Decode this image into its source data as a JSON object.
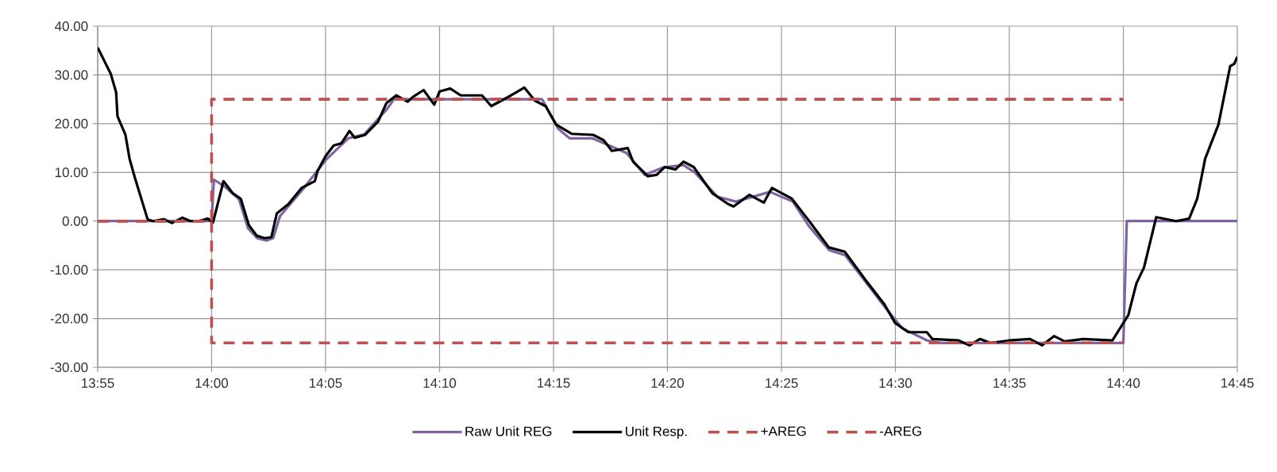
{
  "chart_data": {
    "type": "line",
    "xlim": [
      13.9167,
      14.75
    ],
    "xticks": [
      {
        "value": 13.9167,
        "label": "13:55"
      },
      {
        "value": 14.0,
        "label": "14:00"
      },
      {
        "value": 14.0833,
        "label": "14:05"
      },
      {
        "value": 14.1667,
        "label": "14:10"
      },
      {
        "value": 14.25,
        "label": "14:15"
      },
      {
        "value": 14.3333,
        "label": "14:20"
      },
      {
        "value": 14.4167,
        "label": "14:25"
      },
      {
        "value": 14.5,
        "label": "14:30"
      },
      {
        "value": 14.5833,
        "label": "14:35"
      },
      {
        "value": 14.6667,
        "label": "14:40"
      },
      {
        "value": 14.75,
        "label": "14:45"
      }
    ],
    "ylim": [
      -30,
      40
    ],
    "yticks": [
      {
        "value": -30,
        "label": "-30.00"
      },
      {
        "value": -20,
        "label": "-20.00"
      },
      {
        "value": -10,
        "label": "-10.00"
      },
      {
        "value": 0,
        "label": "0.00"
      },
      {
        "value": 10,
        "label": "10.00"
      },
      {
        "value": 20,
        "label": "20.00"
      },
      {
        "value": 30,
        "label": "30.00"
      },
      {
        "value": 40,
        "label": "40.00"
      }
    ],
    "grid": true,
    "legend": "bottom",
    "marker": "none",
    "series": [
      {
        "name": "Raw Unit REG",
        "color": "#8064a2",
        "line_style": "solid",
        "x": [
          13.9167,
          14.0,
          14.0017,
          14.01,
          14.02,
          14.0267,
          14.0333,
          14.04,
          14.045,
          14.05,
          14.0667,
          14.0833,
          14.1,
          14.1117,
          14.1283,
          14.1333,
          14.2417,
          14.2533,
          14.2617,
          14.2783,
          14.3033,
          14.3167,
          14.33,
          14.345,
          14.3533,
          14.37,
          14.3833,
          14.4083,
          14.425,
          14.4367,
          14.4517,
          14.4633,
          14.4933,
          14.505,
          14.5233,
          14.5333,
          14.6667,
          14.6692,
          14.75
        ],
        "values": [
          0,
          0,
          8.5,
          7.0,
          4.5,
          -1.5,
          -3.5,
          -4.0,
          -3.5,
          1.0,
          6.5,
          12.5,
          17.0,
          17.8,
          23.0,
          25.0,
          25.0,
          19.0,
          17.0,
          17.0,
          14.0,
          9.5,
          11.0,
          11.5,
          10.0,
          5.0,
          4.0,
          6.0,
          4.0,
          -1.0,
          -6.0,
          -7.0,
          -18.0,
          -22.0,
          -24.5,
          -25.0,
          -25.0,
          0,
          0
        ]
      },
      {
        "name": "Unit Resp.",
        "color": "#000000",
        "line_style": "solid",
        "x": [
          13.9167,
          13.9263,
          13.9302,
          13.9312,
          13.937,
          13.94,
          13.9438,
          13.9533,
          13.9573,
          13.965,
          13.971,
          13.9787,
          13.9845,
          13.9903,
          13.9972,
          14.001,
          14.0087,
          14.0155,
          14.0213,
          14.0272,
          14.033,
          14.0388,
          14.0437,
          14.0477,
          14.0562,
          14.0658,
          14.0755,
          14.0775,
          14.0833,
          14.0892,
          14.095,
          14.1008,
          14.1047,
          14.1123,
          14.1217,
          14.1278,
          14.135,
          14.1433,
          14.1473,
          14.155,
          14.1628,
          14.1667,
          14.1745,
          14.1822,
          14.1977,
          14.2045,
          14.219,
          14.2287,
          14.2365,
          14.2442,
          14.252,
          14.2635,
          14.279,
          14.2867,
          14.2927,
          14.3043,
          14.3082,
          14.3158,
          14.3188,
          14.3255,
          14.3313,
          14.3392,
          14.345,
          14.3525,
          14.3662,
          14.3777,
          14.3817,
          14.3933,
          14.4038,
          14.4097,
          14.4243,
          14.4378,
          14.4513,
          14.463,
          14.4785,
          14.492,
          14.4998,
          14.5095,
          14.523,
          14.527,
          14.5463,
          14.5542,
          14.5618,
          14.5695,
          14.583,
          14.5985,
          14.6073,
          14.616,
          14.6238,
          14.6373,
          14.6587,
          14.6703,
          14.6762,
          14.6818,
          14.6907,
          14.7052,
          14.7148,
          14.7207,
          14.7265,
          14.7362,
          14.7448,
          14.7478,
          14.75
        ],
        "values": [
          35.6,
          30.2,
          26.4,
          21.5,
          17.7,
          12.8,
          9.0,
          0.3,
          0,
          0.4,
          -0.4,
          0.7,
          0,
          0,
          0.5,
          -0.3,
          8.2,
          5.7,
          4.6,
          -0.8,
          -3.0,
          -3.5,
          -3.3,
          1.6,
          3.5,
          6.8,
          8.2,
          10.3,
          13.3,
          15.5,
          16.0,
          18.5,
          17.1,
          17.7,
          20.4,
          24.2,
          25.8,
          24.5,
          25.5,
          26.9,
          23.9,
          26.6,
          27.2,
          25.8,
          25.8,
          23.6,
          25.8,
          27.4,
          24.7,
          23.6,
          19.8,
          17.9,
          17.7,
          16.6,
          14.4,
          15.0,
          12.2,
          10.1,
          9.2,
          9.5,
          11.1,
          10.6,
          12.2,
          11.1,
          5.7,
          3.5,
          3.0,
          5.4,
          3.8,
          6.8,
          4.6,
          -0.3,
          -5.4,
          -6.3,
          -12.2,
          -17.1,
          -20.9,
          -22.8,
          -22.8,
          -24.2,
          -24.5,
          -25.5,
          -24.2,
          -25.0,
          -24.5,
          -24.2,
          -25.5,
          -23.6,
          -24.7,
          -24.2,
          -24.5,
          -19.3,
          -12.8,
          -9.5,
          0.8,
          0,
          0.5,
          4.6,
          12.8,
          19.8,
          31.8,
          32.3,
          33.7
        ]
      },
      {
        "name": "+AREG",
        "color": "#c0504d",
        "line_style": "dashed",
        "x": [
          13.9167,
          14.0,
          14.0,
          14.6667
        ],
        "values": [
          0,
          0,
          25,
          25
        ]
      },
      {
        "name": "-AREG",
        "color": "#c0504d",
        "line_style": "dashed",
        "x": [
          13.9167,
          14.0,
          14.0,
          14.6667
        ],
        "values": [
          0,
          0,
          -25,
          -25
        ]
      }
    ]
  }
}
